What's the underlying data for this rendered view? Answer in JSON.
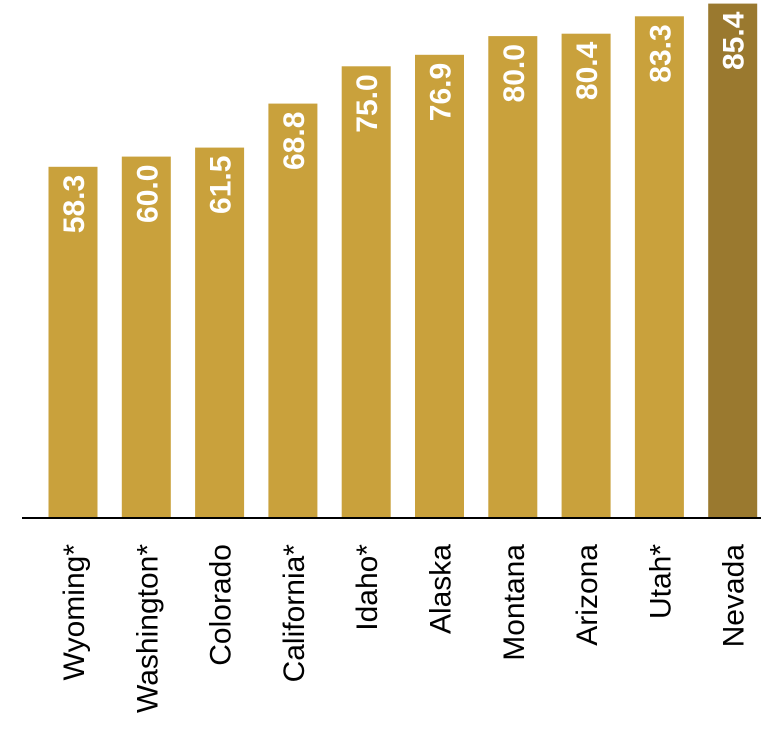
{
  "chart_data": {
    "type": "bar",
    "categories": [
      "Wyoming*",
      "Washington*",
      "Colorado",
      "California*",
      "Idaho*",
      "Alaska",
      "Montana",
      "Arizona",
      "Utah*",
      "Nevada"
    ],
    "values": [
      58.3,
      60.0,
      61.5,
      68.8,
      75.0,
      76.9,
      80.0,
      80.4,
      83.3,
      85.4
    ],
    "value_labels": [
      "58.3",
      "60.0",
      "61.5",
      "68.8",
      "75.0",
      "76.9",
      "80.0",
      "80.4",
      "83.3",
      "85.4"
    ],
    "title": "",
    "xlabel": "",
    "ylabel": "",
    "ylim": [
      0,
      86
    ],
    "grid": false,
    "legend": "none",
    "highlight_index": 9
  },
  "colors": {
    "bar": "#C9A13C",
    "highlight": "#9A792F",
    "axis": "#000000",
    "label_text": "#ffffff"
  }
}
